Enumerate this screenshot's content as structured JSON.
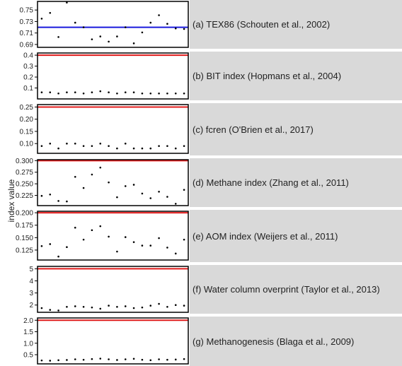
{
  "figure": {
    "ylabel": "index value"
  },
  "chart_data": [
    {
      "type": "scatter",
      "panel_label": "(a)  TEX86 (Schouten et al., 2002)",
      "ylim": [
        0.685,
        0.765
      ],
      "yticks": [
        "0.69",
        "0.71",
        "0.73",
        "0.75"
      ],
      "ytick_values": [
        0.69,
        0.71,
        0.73,
        0.75
      ],
      "threshold": {
        "value": 0.72,
        "color": "#1a1adc"
      },
      "x": [
        1,
        2,
        3,
        4,
        5,
        6,
        7,
        8,
        9,
        10,
        11,
        12,
        13,
        14,
        15,
        16,
        17,
        18
      ],
      "y": [
        0.735,
        0.745,
        0.703,
        0.763,
        0.728,
        0.72,
        0.699,
        0.704,
        0.695,
        0.704,
        0.72,
        0.692,
        0.711,
        0.728,
        0.741,
        0.726,
        0.718,
        0.717
      ]
    },
    {
      "type": "scatter",
      "panel_label": "(b)  BIT index (Hopmans et al., 2004)",
      "ylim": [
        0,
        0.42
      ],
      "yticks": [
        "0.1",
        "0.2",
        "0.3",
        "0.4"
      ],
      "ytick_values": [
        0.1,
        0.2,
        0.3,
        0.4
      ],
      "threshold": {
        "value": 0.4,
        "color": "#e01b1b"
      },
      "x": [
        1,
        2,
        3,
        4,
        5,
        6,
        7,
        8,
        9,
        10,
        11,
        12,
        13,
        14,
        15,
        16,
        17,
        18
      ],
      "y": [
        0.06,
        0.06,
        0.05,
        0.06,
        0.06,
        0.05,
        0.06,
        0.07,
        0.06,
        0.05,
        0.06,
        0.06,
        0.05,
        0.05,
        0.05,
        0.05,
        0.05,
        0.05
      ]
    },
    {
      "type": "scatter",
      "panel_label": "(c)  fcren (O'Brien et al., 2017)",
      "ylim": [
        0.06,
        0.26
      ],
      "yticks": [
        "0.10",
        "0.15",
        "0.20",
        "0.25"
      ],
      "ytick_values": [
        0.1,
        0.15,
        0.2,
        0.25
      ],
      "threshold": {
        "value": 0.25,
        "color": "#e01b1b"
      },
      "x": [
        1,
        2,
        3,
        4,
        5,
        6,
        7,
        8,
        9,
        10,
        11,
        12,
        13,
        14,
        15,
        16,
        17,
        18
      ],
      "y": [
        0.09,
        0.1,
        0.08,
        0.1,
        0.1,
        0.09,
        0.09,
        0.1,
        0.09,
        0.08,
        0.1,
        0.08,
        0.08,
        0.08,
        0.09,
        0.09,
        0.08,
        0.09
      ]
    },
    {
      "type": "scatter",
      "panel_label": "(d)  Methane index (Zhang et al., 2011)",
      "ylim": [
        0.203,
        0.302
      ],
      "yticks": [
        "0.225",
        "0.250",
        "0.275",
        "0.300"
      ],
      "ytick_values": [
        0.225,
        0.25,
        0.275,
        0.3
      ],
      "threshold": {
        "value": 0.3,
        "color": "#e01b1b"
      },
      "x": [
        1,
        2,
        3,
        4,
        5,
        6,
        7,
        8,
        9,
        10,
        11,
        12,
        13,
        14,
        15,
        16,
        17,
        18
      ],
      "y": [
        0.224,
        0.227,
        0.213,
        0.212,
        0.265,
        0.241,
        0.27,
        0.285,
        0.253,
        0.221,
        0.245,
        0.248,
        0.229,
        0.219,
        0.233,
        0.222,
        0.207,
        0.237
      ]
    },
    {
      "type": "scatter",
      "panel_label": "(e)  AOM index (Weijers et al., 2011)",
      "ylim": [
        0.105,
        0.203
      ],
      "yticks": [
        "0.125",
        "0.150",
        "0.175",
        "0.200"
      ],
      "ytick_values": [
        0.125,
        0.15,
        0.175,
        0.2
      ],
      "threshold": {
        "value": 0.2,
        "color": "#e01b1b"
      },
      "x": [
        1,
        2,
        3,
        4,
        5,
        6,
        7,
        8,
        9,
        10,
        11,
        12,
        13,
        14,
        15,
        16,
        17,
        18
      ],
      "y": [
        0.133,
        0.137,
        0.112,
        0.131,
        0.17,
        0.146,
        0.165,
        0.173,
        0.152,
        0.122,
        0.151,
        0.141,
        0.134,
        0.134,
        0.149,
        0.13,
        0.118,
        0.146
      ]
    },
    {
      "type": "scatter",
      "panel_label": "(f)  Water column overprint (Taylor et al., 2013)",
      "ylim": [
        1.4,
        5.2
      ],
      "yticks": [
        "2",
        "3",
        "4",
        "5"
      ],
      "ytick_values": [
        2,
        3,
        4,
        5
      ],
      "threshold": {
        "value": 5,
        "color": "#e01b1b"
      },
      "x": [
        1,
        2,
        3,
        4,
        5,
        6,
        7,
        8,
        9,
        10,
        11,
        12,
        13,
        14,
        15,
        16,
        17,
        18
      ],
      "y": [
        1.75,
        1.6,
        1.55,
        1.85,
        1.9,
        1.85,
        1.8,
        1.7,
        1.95,
        1.85,
        1.9,
        1.75,
        1.8,
        1.95,
        2.1,
        1.85,
        2.0,
        1.95
      ]
    },
    {
      "type": "scatter",
      "panel_label": "(g)  Methanogenesis (Blaga et al., 2009)",
      "ylim": [
        0.1,
        2.1
      ],
      "yticks": [
        "0.5",
        "1.0",
        "1.5",
        "2.0"
      ],
      "ytick_values": [
        0.5,
        1.0,
        1.5,
        2.0
      ],
      "threshold": {
        "value": 2.0,
        "color": "#e01b1b"
      },
      "x": [
        1,
        2,
        3,
        4,
        5,
        6,
        7,
        8,
        9,
        10,
        11,
        12,
        13,
        14,
        15,
        16,
        17,
        18
      ],
      "y": [
        0.25,
        0.24,
        0.26,
        0.27,
        0.3,
        0.28,
        0.31,
        0.33,
        0.3,
        0.27,
        0.3,
        0.32,
        0.28,
        0.26,
        0.3,
        0.28,
        0.29,
        0.31
      ]
    }
  ]
}
